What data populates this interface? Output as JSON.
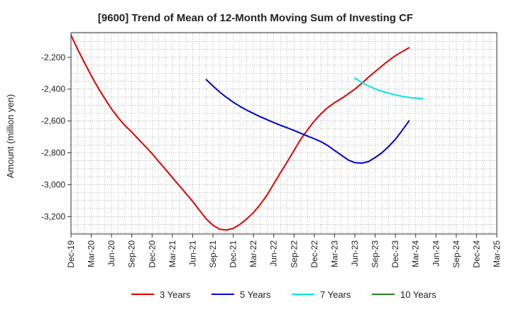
{
  "chart_data": {
    "type": "line",
    "title": "[9600]  Trend of Mean of 12-Month Moving Sum of Investing CF",
    "xlabel": "",
    "ylabel": "Amount (million yen)",
    "x_ticks": [
      "Dec-19",
      "Mar-20",
      "Jun-20",
      "Sep-20",
      "Dec-20",
      "Mar-21",
      "Jun-21",
      "Sep-21",
      "Dec-21",
      "Mar-22",
      "Jun-22",
      "Sep-22",
      "Dec-22",
      "Mar-23",
      "Jun-23",
      "Sep-23",
      "Dec-23",
      "Mar-24",
      "Jun-24",
      "Sep-24",
      "Dec-24",
      "Mar-25"
    ],
    "y_ticks": [
      -2200,
      -2400,
      -2600,
      -2800,
      -3000,
      -3200
    ],
    "y_tick_labels": [
      "-2,200",
      "-2,400",
      "-2,600",
      "-2,800",
      "-3,000",
      "-3,200"
    ],
    "ylim": [
      -3310,
      -2045
    ],
    "xlim": [
      0,
      21
    ],
    "grid": true,
    "legend_position": "bottom",
    "series": [
      {
        "name": "3 Years",
        "color": "#dd0000",
        "points": [
          [
            0,
            -2060
          ],
          [
            0.33,
            -2150
          ],
          [
            0.67,
            -2235
          ],
          [
            1,
            -2315
          ],
          [
            1.33,
            -2390
          ],
          [
            1.67,
            -2460
          ],
          [
            2,
            -2525
          ],
          [
            2.33,
            -2580
          ],
          [
            2.67,
            -2630
          ],
          [
            3,
            -2670
          ],
          [
            3.33,
            -2715
          ],
          [
            3.67,
            -2760
          ],
          [
            4,
            -2805
          ],
          [
            4.33,
            -2855
          ],
          [
            4.67,
            -2905
          ],
          [
            5,
            -2955
          ],
          [
            5.33,
            -3005
          ],
          [
            5.67,
            -3055
          ],
          [
            6,
            -3105
          ],
          [
            6.33,
            -3160
          ],
          [
            6.67,
            -3215
          ],
          [
            7,
            -3255
          ],
          [
            7.33,
            -3280
          ],
          [
            7.67,
            -3285
          ],
          [
            8,
            -3275
          ],
          [
            8.33,
            -3250
          ],
          [
            8.67,
            -3215
          ],
          [
            9,
            -3175
          ],
          [
            9.33,
            -3125
          ],
          [
            9.67,
            -3065
          ],
          [
            10,
            -2995
          ],
          [
            10.33,
            -2925
          ],
          [
            10.67,
            -2855
          ],
          [
            11,
            -2785
          ],
          [
            11.33,
            -2715
          ],
          [
            11.67,
            -2655
          ],
          [
            12,
            -2600
          ],
          [
            12.33,
            -2555
          ],
          [
            12.67,
            -2515
          ],
          [
            13,
            -2485
          ],
          [
            13.33,
            -2460
          ],
          [
            13.67,
            -2430
          ],
          [
            14,
            -2400
          ],
          [
            14.33,
            -2365
          ],
          [
            14.67,
            -2325
          ],
          [
            15,
            -2290
          ],
          [
            15.33,
            -2255
          ],
          [
            15.67,
            -2220
          ],
          [
            16,
            -2190
          ],
          [
            16.33,
            -2165
          ],
          [
            16.67,
            -2140
          ]
        ]
      },
      {
        "name": "5 Years",
        "color": "#0000cc",
        "points": [
          [
            6.67,
            -2340
          ],
          [
            7,
            -2380
          ],
          [
            7.33,
            -2418
          ],
          [
            7.67,
            -2452
          ],
          [
            8,
            -2482
          ],
          [
            8.33,
            -2508
          ],
          [
            8.67,
            -2532
          ],
          [
            9,
            -2553
          ],
          [
            9.33,
            -2573
          ],
          [
            9.67,
            -2592
          ],
          [
            10,
            -2610
          ],
          [
            10.33,
            -2627
          ],
          [
            10.67,
            -2643
          ],
          [
            11,
            -2660
          ],
          [
            11.33,
            -2677
          ],
          [
            11.67,
            -2695
          ],
          [
            12,
            -2712
          ],
          [
            12.33,
            -2730
          ],
          [
            12.67,
            -2755
          ],
          [
            13,
            -2785
          ],
          [
            13.33,
            -2815
          ],
          [
            13.67,
            -2845
          ],
          [
            14,
            -2862
          ],
          [
            14.33,
            -2865
          ],
          [
            14.67,
            -2855
          ],
          [
            15,
            -2830
          ],
          [
            15.33,
            -2800
          ],
          [
            15.67,
            -2760
          ],
          [
            16,
            -2715
          ],
          [
            16.33,
            -2660
          ],
          [
            16.67,
            -2600
          ]
        ]
      },
      {
        "name": "7 Years",
        "color": "#00e5e5",
        "points": [
          [
            14,
            -2330
          ],
          [
            14.33,
            -2357
          ],
          [
            14.67,
            -2380
          ],
          [
            15,
            -2398
          ],
          [
            15.33,
            -2413
          ],
          [
            15.67,
            -2425
          ],
          [
            16,
            -2436
          ],
          [
            16.33,
            -2445
          ],
          [
            16.67,
            -2452
          ],
          [
            17,
            -2457
          ],
          [
            17.33,
            -2460
          ]
        ]
      },
      {
        "name": "10 Years",
        "color": "#228822",
        "points": []
      }
    ]
  }
}
